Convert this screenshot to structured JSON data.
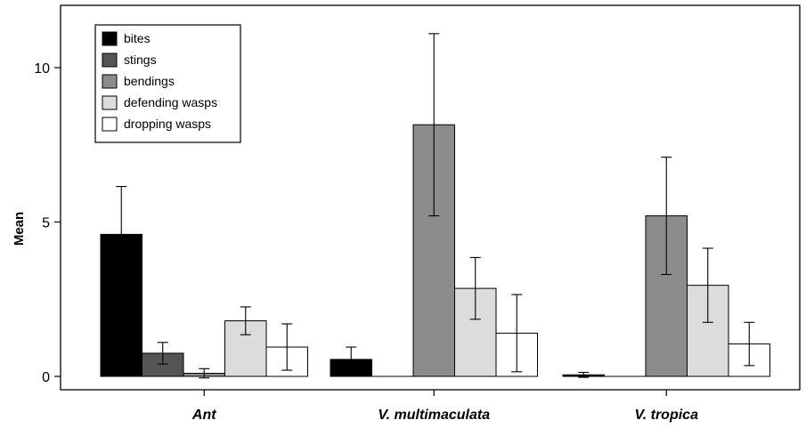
{
  "chart_data": {
    "type": "bar",
    "ylabel": "Mean",
    "xlabel": "",
    "ylim": [
      -0.5,
      11.6
    ],
    "yticks": [
      0,
      5,
      10
    ],
    "categories": [
      "Ant",
      "V. multimaculata",
      "V. tropica"
    ],
    "legend_position": "top-left",
    "error_bars": true,
    "series": [
      {
        "name": "bites",
        "color": "#000000",
        "values": [
          4.6,
          0.55,
          0.05
        ],
        "errors": [
          1.55,
          0.4,
          0.08
        ]
      },
      {
        "name": "stings",
        "color": "#555555",
        "values": [
          0.75,
          0.0,
          0.0
        ],
        "errors": [
          0.35,
          0.0,
          0.0
        ]
      },
      {
        "name": "bendings",
        "color": "#8c8c8c",
        "values": [
          0.1,
          8.15,
          5.2
        ],
        "errors": [
          0.15,
          2.95,
          1.9
        ]
      },
      {
        "name": "defending wasps",
        "color": "#dcdcdc",
        "values": [
          1.8,
          2.85,
          2.95
        ],
        "errors": [
          0.45,
          1.0,
          1.2
        ]
      },
      {
        "name": "dropping wasps",
        "color": "#ffffff",
        "values": [
          0.95,
          1.4,
          1.05
        ],
        "errors": [
          0.75,
          1.25,
          0.7
        ]
      }
    ]
  }
}
